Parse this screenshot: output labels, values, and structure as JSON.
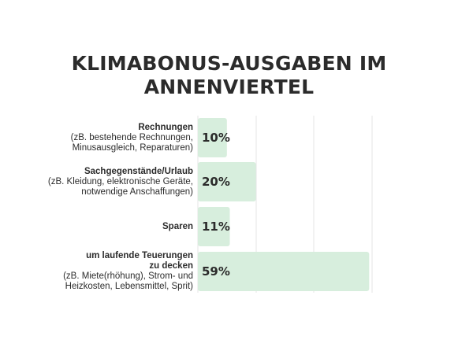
{
  "title_line1": "KLIMABONUS-AUSGABEN IM",
  "title_line2": "ANNENVIERTEL",
  "colors": {
    "bar": "#d7eedd",
    "grid": "#e6e6e6",
    "text": "#2b2b2b"
  },
  "chart_data": {
    "type": "bar",
    "orientation": "horizontal",
    "title": "KLIMABONUS-AUSGABEN IM ANNENVIERTEL",
    "xlim": [
      0,
      60
    ],
    "grid": true,
    "categories": [
      {
        "main": [
          "Rechnungen"
        ],
        "sub": [
          "(zB. bestehende Rechnungen,",
          "Minusausgleich, Reparaturen)"
        ]
      },
      {
        "main": [
          "Sachgegenstände/Urlaub"
        ],
        "sub": [
          "(zB. Kleidung, elektronische Geräte,",
          "notwendige Anschaffungen)"
        ]
      },
      {
        "main": [
          "Sparen"
        ],
        "sub": []
      },
      {
        "main": [
          "um laufende Teuerungen",
          "zu decken"
        ],
        "sub": [
          "(zB. Miete(rhöhung), Strom- und",
          "Heizkosten, Lebensmittel, Sprit)"
        ]
      }
    ],
    "values": [
      10,
      20,
      11,
      59
    ],
    "value_labels": [
      "10%",
      "20%",
      "11%",
      "59%"
    ]
  }
}
